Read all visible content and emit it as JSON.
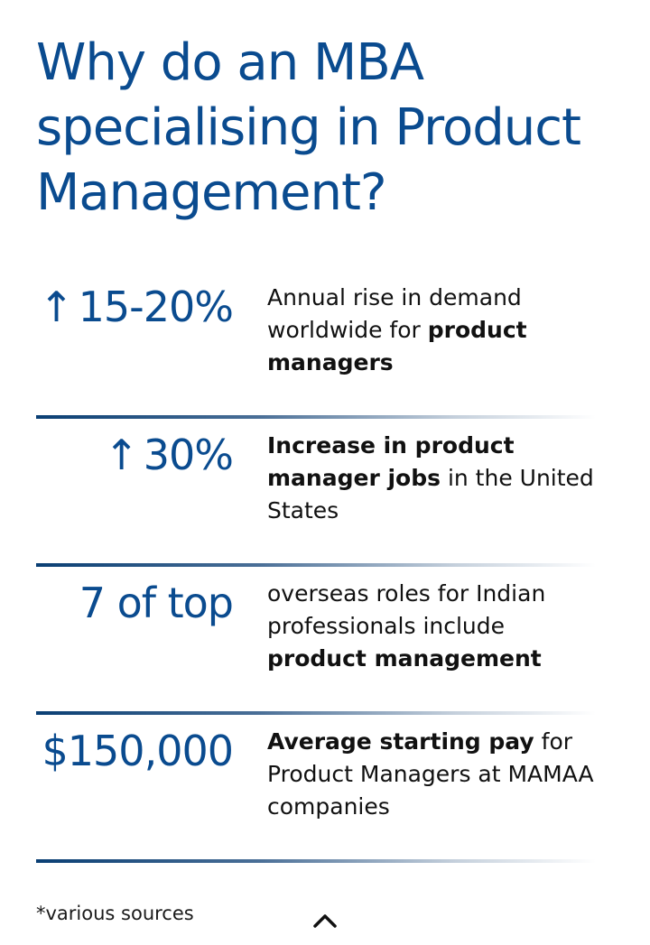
{
  "header": {
    "title": "Why do an MBA specialising in Product Management?"
  },
  "stats": [
    {
      "value": "15-20%",
      "arrow": "↑",
      "desc_parts": [
        {
          "text": "Annual rise in demand worldwide for ",
          "bold": false
        },
        {
          "text": "product managers",
          "bold": true
        }
      ]
    },
    {
      "value": "30%",
      "arrow": "↑",
      "desc_parts": [
        {
          "text": "Increase in product manager jobs",
          "bold": true
        },
        {
          "text": " in the United States",
          "bold": false
        }
      ]
    },
    {
      "value": "7 of top",
      "arrow": "",
      "desc_parts": [
        {
          "text": "overseas roles for Indian professionals include ",
          "bold": false
        },
        {
          "text": "product management",
          "bold": true
        }
      ]
    },
    {
      "value": "$150,000",
      "arrow": "",
      "desc_parts": [
        {
          "text": "Average starting pay",
          "bold": true
        },
        {
          "text": " for Product Managers at MAMAA companies",
          "bold": false
        }
      ]
    }
  ],
  "footer": {
    "footnote": "*various sources",
    "scroll_icon": "chevron-up-icon"
  },
  "colors": {
    "accent": "#0a4b8f",
    "text": "#111111"
  }
}
